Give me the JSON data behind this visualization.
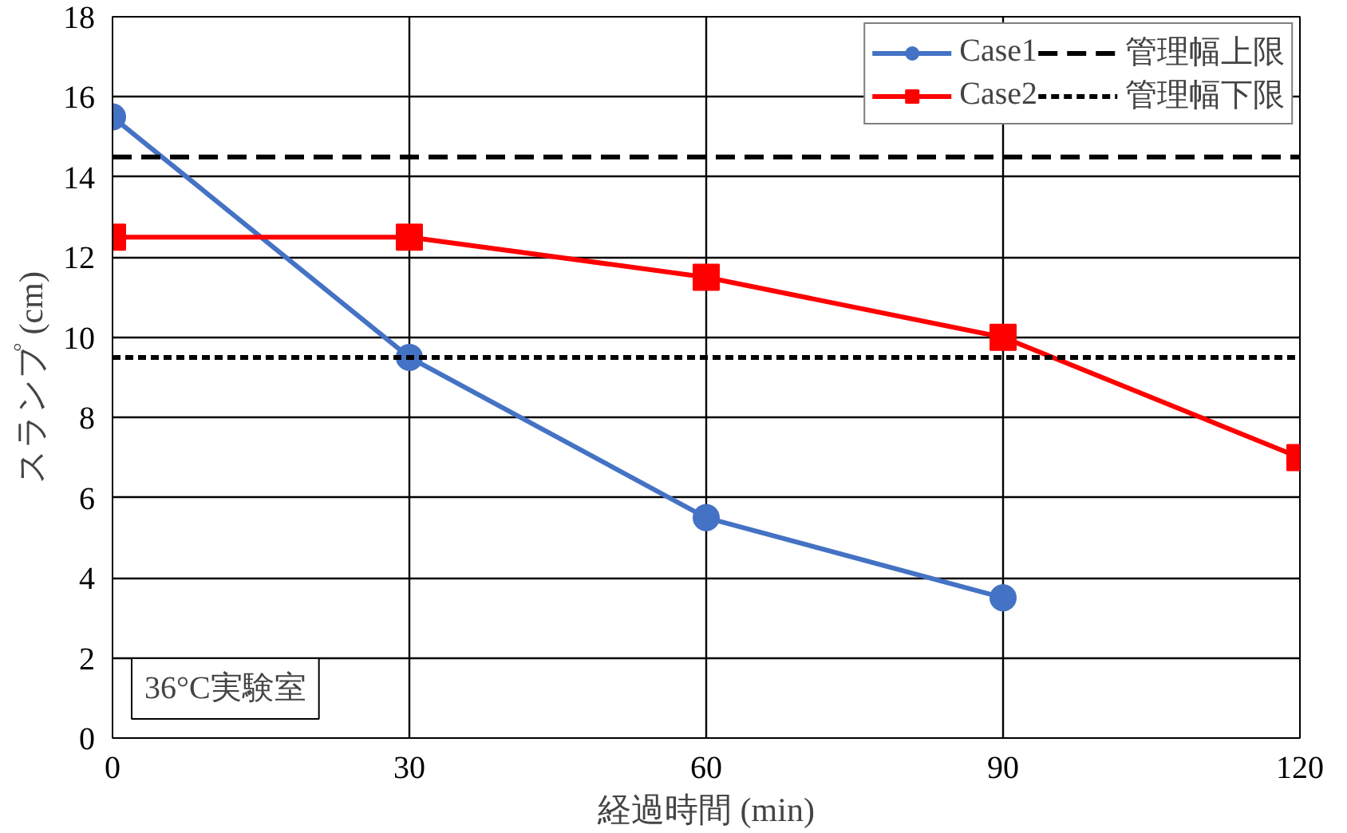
{
  "chart_data": {
    "type": "line",
    "xlabel": "経過時間 (min)",
    "ylabel": "スランプ (cm)",
    "series": [
      {
        "name": "Case1",
        "color": "#4472c4",
        "marker": "circle",
        "x": [
          0,
          30,
          60,
          90
        ],
        "values": [
          15.5,
          9.5,
          5.5,
          3.5
        ]
      },
      {
        "name": "Case2",
        "color": "#ff0000",
        "marker": "square",
        "x": [
          0,
          30,
          60,
          90,
          120
        ],
        "values": [
          12.5,
          12.5,
          11.5,
          10,
          7
        ]
      }
    ],
    "ref_lines": [
      {
        "axis": "y",
        "value": 14.5,
        "label": "管理幅上限",
        "color": "#000000",
        "line_style": "dashed"
      },
      {
        "axis": "y",
        "value": 9.5,
        "label": "管理幅下限",
        "color": "#000000",
        "line_style": "dotted"
      }
    ],
    "annotations": [
      "36°C実験室"
    ],
    "xlim": [
      0,
      120
    ],
    "xticks": [
      0,
      30,
      60,
      90,
      120
    ],
    "ylim": [
      0,
      18
    ],
    "yticks": [
      0,
      2,
      4,
      6,
      8,
      10,
      12,
      14,
      16,
      18
    ],
    "grid": true,
    "legend": "top right",
    "line_style": "solid"
  }
}
